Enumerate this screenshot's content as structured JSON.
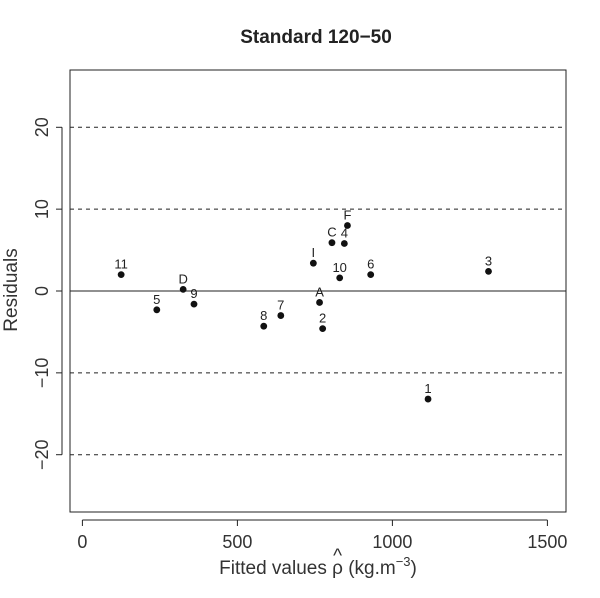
{
  "chart_data": {
    "type": "scatter",
    "title": "Standard 120−50",
    "xlabel_prefix": "Fitted values ",
    "xlabel_symbol": "ρ",
    "xlabel_hat": "^",
    "xlabel_unit_open": " (kg.m",
    "xlabel_unit_exp": "−3",
    "xlabel_unit_close": ")",
    "ylabel": "Residuals",
    "xlim": [
      -40,
      1560
    ],
    "ylim": [
      -27,
      27
    ],
    "xticks": [
      0,
      500,
      1000,
      1500
    ],
    "xtick_labels": [
      "0",
      "500",
      "1000",
      "1500"
    ],
    "yticks": [
      -20,
      -10,
      0,
      10,
      20
    ],
    "ytick_labels": [
      "−20",
      "−10",
      "0",
      "10",
      "20"
    ],
    "reference_lines": [
      {
        "y": 20,
        "style": "dashed"
      },
      {
        "y": 10,
        "style": "dashed"
      },
      {
        "y": 0,
        "style": "solid"
      },
      {
        "y": -10,
        "style": "dashed"
      },
      {
        "y": -20,
        "style": "dashed"
      }
    ],
    "points": [
      {
        "label": "11",
        "x": 125,
        "y": 2.0
      },
      {
        "label": "5",
        "x": 240,
        "y": -2.3
      },
      {
        "label": "D",
        "x": 325,
        "y": 0.2
      },
      {
        "label": "9",
        "x": 360,
        "y": -1.6
      },
      {
        "label": "8",
        "x": 585,
        "y": -4.3
      },
      {
        "label": "7",
        "x": 640,
        "y": -3.0
      },
      {
        "label": "I",
        "x": 745,
        "y": 3.4
      },
      {
        "label": "A",
        "x": 765,
        "y": -1.4
      },
      {
        "label": "2",
        "x": 775,
        "y": -4.6
      },
      {
        "label": "C",
        "x": 805,
        "y": 5.9
      },
      {
        "label": "10",
        "x": 830,
        "y": 1.6
      },
      {
        "label": "4",
        "x": 845,
        "y": 5.8
      },
      {
        "label": "F",
        "x": 855,
        "y": 8.0
      },
      {
        "label": "6",
        "x": 930,
        "y": 2.0
      },
      {
        "label": "1",
        "x": 1115,
        "y": -13.2
      },
      {
        "label": "3",
        "x": 1310,
        "y": 2.4
      }
    ]
  }
}
